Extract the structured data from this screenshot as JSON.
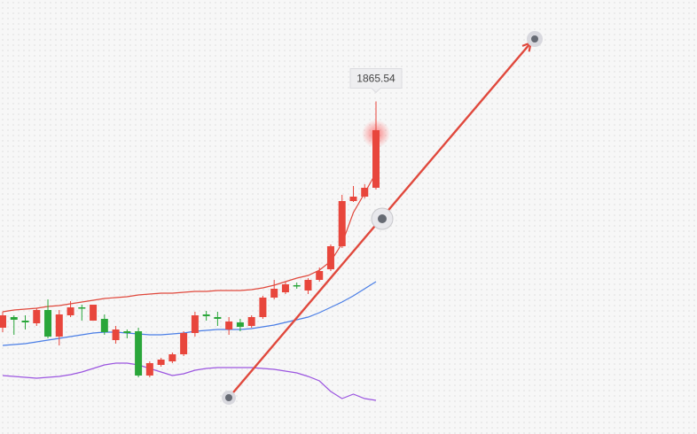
{
  "chart_data": {
    "type": "candlestick",
    "categories": [
      null,
      null,
      null,
      null,
      null,
      null,
      null,
      null,
      null,
      null,
      null,
      null,
      null,
      null,
      null,
      null,
      null,
      null,
      null,
      null,
      null,
      null,
      null,
      null,
      null,
      null,
      null,
      null,
      null,
      null,
      null,
      null,
      null,
      null
    ],
    "open": [
      1610,
      1622,
      1618,
      1615,
      1630,
      1600,
      1624,
      1633,
      1618,
      1620,
      1596,
      1606,
      1606,
      1556,
      1568,
      1572,
      1580,
      1604,
      1625,
      1622,
      1608,
      1616,
      1612,
      1622,
      1644,
      1650,
      1658,
      1652,
      1664,
      1676,
      1702,
      1753,
      1758,
      1768
    ],
    "close": [
      1624,
      1619,
      1616,
      1630,
      1600,
      1625,
      1633,
      1632,
      1636,
      1605,
      1608,
      1604,
      1556,
      1570,
      1574,
      1580,
      1604,
      1624,
      1623,
      1620,
      1617,
      1611,
      1622,
      1644,
      1654,
      1659,
      1657,
      1664,
      1674,
      1702,
      1753,
      1758,
      1768,
      1833
    ],
    "high": [
      1628,
      1624,
      1624,
      1632,
      1642,
      1630,
      1640,
      1636,
      1636,
      1625,
      1612,
      1608,
      1610,
      1572,
      1576,
      1582,
      1606,
      1628,
      1629,
      1628,
      1622,
      1620,
      1624,
      1646,
      1664,
      1662,
      1661,
      1666,
      1678,
      1704,
      1760,
      1770,
      1772,
      1865.54
    ],
    "low": [
      1605,
      1602,
      1608,
      1612,
      1598,
      1590,
      1622,
      1618,
      1618,
      1602,
      1592,
      1598,
      1554,
      1554,
      1566,
      1570,
      1578,
      1600,
      1618,
      1612,
      1602,
      1606,
      1610,
      1620,
      1642,
      1648,
      1654,
      1648,
      1662,
      1674,
      1700,
      1752,
      1756,
      1766
    ],
    "up_color": "#e8463c",
    "down_color": "#2aa63a",
    "bands": [
      {
        "color": "#e0483c",
        "values": [
          1628,
          1630,
          1631,
          1632,
          1634,
          1635,
          1637,
          1639,
          1641,
          1643,
          1644,
          1645,
          1647,
          1648,
          1649,
          1649,
          1650,
          1651,
          1651,
          1652,
          1652,
          1652,
          1653,
          1655,
          1658,
          1662,
          1666,
          1669,
          1675,
          1685,
          1705,
          1740,
          1762,
          1785
        ]
      },
      {
        "color": "#4a7ee6",
        "values": [
          1590,
          1591,
          1592,
          1594,
          1596,
          1598,
          1600,
          1602,
          1604,
          1605,
          1605,
          1604,
          1603,
          1602,
          1602,
          1603,
          1604,
          1606,
          1607,
          1608,
          1608,
          1608,
          1609,
          1611,
          1613,
          1616,
          1619,
          1622,
          1627,
          1633,
          1639,
          1646,
          1654,
          1662
        ]
      },
      {
        "color": "#9b55e0",
        "values": [
          1556,
          1555,
          1554,
          1553,
          1554,
          1555,
          1557,
          1560,
          1564,
          1568,
          1570,
          1570,
          1568,
          1564,
          1560,
          1556,
          1558,
          1562,
          1564,
          1565,
          1565,
          1565,
          1565,
          1564,
          1563,
          1561,
          1559,
          1555,
          1550,
          1538,
          1530,
          1535,
          1530,
          1528
        ]
      }
    ],
    "ylim": [
      1490,
      1980
    ]
  }
}
